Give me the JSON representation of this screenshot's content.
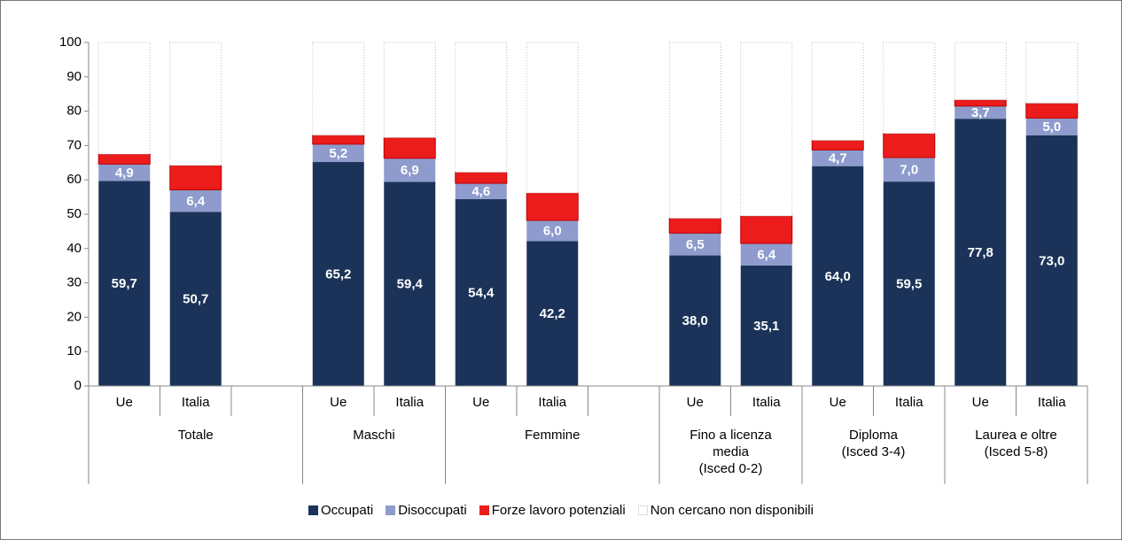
{
  "chart_data": {
    "type": "stacked_bar",
    "categories": [
      "Ue",
      "Italia",
      null,
      "Ue",
      "Italia",
      "Ue",
      "Italia",
      null,
      "Ue",
      "Italia",
      "Ue",
      "Italia",
      "Ue",
      "Italia"
    ],
    "groups": [
      "Totale",
      "Totale",
      "Totale",
      "Maschi",
      "Maschi",
      "Femmine",
      "Femmine",
      "Femmine",
      "Fino a licenza\nmedia\n(Isced 0-2)",
      "Fino a licenza\nmedia\n(Isced 0-2)",
      "Diploma\n(Isced 3-4)",
      "Diploma\n(Isced 3-4)",
      "Laurea e oltre\n(Isced 5-8)",
      "Laurea e oltre\n(Isced 5-8)"
    ],
    "series": [
      {
        "name": "Occupati",
        "color": "#1b3358",
        "values": [
          59.7,
          50.7,
          null,
          65.2,
          59.4,
          54.4,
          42.2,
          null,
          38.0,
          35.1,
          64.0,
          59.5,
          77.8,
          73.0
        ],
        "value_labels": [
          "59,7",
          "50,7",
          null,
          "65,2",
          "59,4",
          "54,4",
          "42,2",
          null,
          "38,0",
          "35,1",
          "64,0",
          "59,5",
          "77,8",
          "73,0"
        ]
      },
      {
        "name": "Disoccupati",
        "color": "#8e9bcc",
        "values": [
          4.9,
          6.4,
          null,
          5.2,
          6.9,
          4.6,
          6.0,
          null,
          6.5,
          6.4,
          4.7,
          7.0,
          3.7,
          5.0
        ],
        "value_labels": [
          "4,9",
          "6,4",
          null,
          "5,2",
          "6,9",
          "4,6",
          "6,0",
          null,
          "6,5",
          "6,4",
          "4,7",
          "7,0",
          "3,7",
          "5,0"
        ]
      },
      {
        "name": "Forze lavoro potenziali",
        "color": "#ec1c1c",
        "values": [
          2.9,
          7.1,
          null,
          2.6,
          6.0,
          3.2,
          8.0,
          null,
          4.3,
          8.0,
          2.8,
          7.0,
          1.8,
          4.3
        ]
      },
      {
        "name": "Non cercano non disponibili",
        "color": "#ffffff",
        "values": [
          32.5,
          35.8,
          null,
          27.0,
          27.7,
          37.8,
          43.8,
          null,
          51.2,
          50.5,
          28.5,
          26.5,
          16.7,
          17.7
        ]
      }
    ],
    "ylim": [
      0,
      100
    ],
    "yticks": [
      0,
      10,
      20,
      30,
      40,
      50,
      60,
      70,
      80,
      90,
      100
    ]
  }
}
